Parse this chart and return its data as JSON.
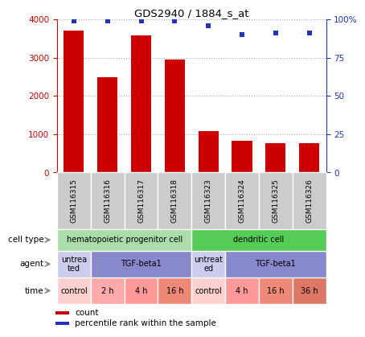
{
  "title": "GDS2940 / 1884_s_at",
  "samples": [
    "GSM116315",
    "GSM116316",
    "GSM116317",
    "GSM116318",
    "GSM116323",
    "GSM116324",
    "GSM116325",
    "GSM116326"
  ],
  "counts": [
    3700,
    2480,
    3580,
    2950,
    1080,
    820,
    760,
    760
  ],
  "percentiles": [
    99,
    99,
    99,
    99,
    96,
    90,
    91,
    91
  ],
  "ylim_left": [
    0,
    4000
  ],
  "ylim_right": [
    0,
    100
  ],
  "yticks_left": [
    0,
    1000,
    2000,
    3000,
    4000
  ],
  "yticks_right": [
    0,
    25,
    50,
    75,
    100
  ],
  "ytick_labels_right": [
    "0",
    "25",
    "50",
    "75",
    "100%"
  ],
  "bar_color": "#cc0000",
  "dot_color": "#2233bb",
  "cell_type_groups": [
    {
      "text": "hematopoietic progenitor cell",
      "span": [
        0,
        4
      ],
      "color": "#aaddaa"
    },
    {
      "text": "dendritic cell",
      "span": [
        4,
        8
      ],
      "color": "#55cc55"
    }
  ],
  "agent_groups": [
    {
      "text": "untrea\nted",
      "span": [
        0,
        1
      ],
      "color": "#ccccee"
    },
    {
      "text": "TGF-beta1",
      "span": [
        1,
        4
      ],
      "color": "#8888cc"
    },
    {
      "text": "untreat\ned",
      "span": [
        4,
        5
      ],
      "color": "#ccccee"
    },
    {
      "text": "TGF-beta1",
      "span": [
        5,
        8
      ],
      "color": "#8888cc"
    }
  ],
  "time_groups": [
    {
      "text": "control",
      "span": [
        0,
        1
      ],
      "color": "#ffd0d0"
    },
    {
      "text": "2 h",
      "span": [
        1,
        2
      ],
      "color": "#ffaaaa"
    },
    {
      "text": "4 h",
      "span": [
        2,
        3
      ],
      "color": "#ff9999"
    },
    {
      "text": "16 h",
      "span": [
        3,
        4
      ],
      "color": "#ee8877"
    },
    {
      "text": "control",
      "span": [
        4,
        5
      ],
      "color": "#ffd0d0"
    },
    {
      "text": "4 h",
      "span": [
        5,
        6
      ],
      "color": "#ff9999"
    },
    {
      "text": "16 h",
      "span": [
        6,
        7
      ],
      "color": "#ee8877"
    },
    {
      "text": "36 h",
      "span": [
        7,
        8
      ],
      "color": "#dd7766"
    }
  ],
  "row_labels": [
    "cell type",
    "agent",
    "time"
  ],
  "legend_items": [
    {
      "color": "#cc0000",
      "marker": "s",
      "label": "count"
    },
    {
      "color": "#2233bb",
      "marker": "s",
      "label": "percentile rank within the sample"
    }
  ],
  "grid_color": "#aaaaaa",
  "label_color_left": "#cc0000",
  "label_color_right": "#2233bb",
  "sample_bg_color": "#cccccc",
  "sample_border_color": "#999999"
}
